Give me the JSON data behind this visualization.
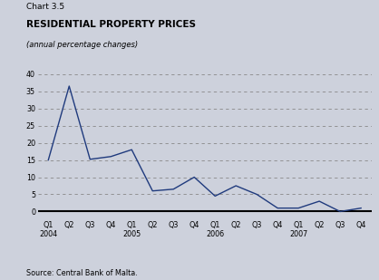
{
  "title_line1": "Chart 3.5",
  "title_line2": "RESIDENTIAL PROPERTY PRICES",
  "title_line3": "(annual percentage changes)",
  "source": "Source: Central Bank of Malta.",
  "x_labels": [
    "Q1\n2004",
    "Q2",
    "Q3",
    "Q4",
    "Q1\n2005",
    "Q2",
    "Q3",
    "Q4",
    "Q1\n2006",
    "Q2",
    "Q3",
    "Q4",
    "Q1\n2007",
    "Q2",
    "Q3",
    "Q4"
  ],
  "values": [
    15.0,
    36.5,
    15.2,
    16.0,
    18.0,
    6.0,
    6.5,
    10.0,
    4.5,
    7.5,
    5.0,
    1.0,
    1.0,
    3.0,
    0.0,
    1.0
  ],
  "ylim": [
    -2,
    42
  ],
  "yticks": [
    0,
    5,
    10,
    15,
    20,
    25,
    30,
    35,
    40
  ],
  "line_color": "#1f3a7d",
  "background_color": "#cdd1dc",
  "grid_color": "#888888",
  "zero_line_color": "#000000",
  "title1_fontsize": 6.5,
  "title2_fontsize": 7.5,
  "title3_fontsize": 6.0,
  "source_fontsize": 5.8,
  "tick_fontsize": 5.8
}
